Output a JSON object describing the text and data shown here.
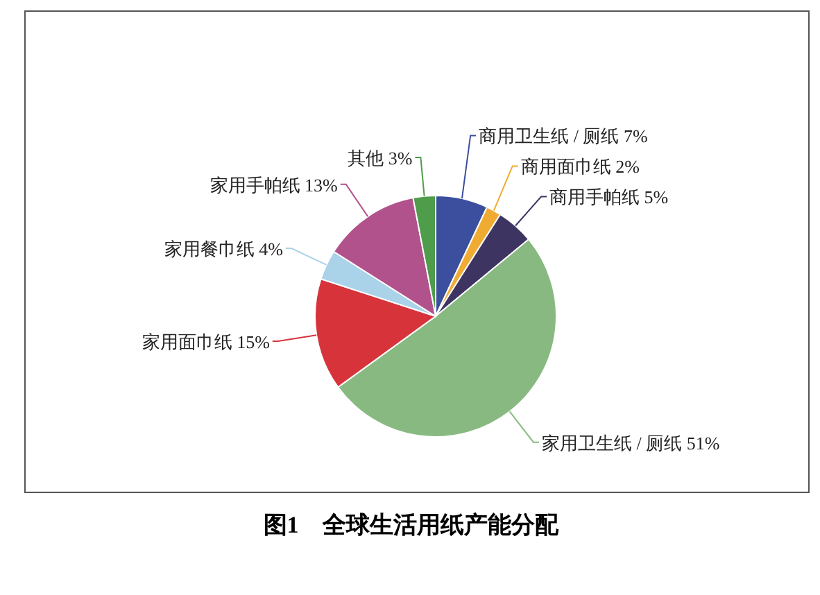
{
  "chart_data": {
    "type": "pie",
    "title": "图1　全球生活用纸产能分配",
    "categories": [
      "商用卫生纸 / 厕纸",
      "商用面巾纸",
      "商用手帕纸",
      "家用卫生纸 / 厕纸",
      "家用面巾纸",
      "家用餐巾纸",
      "家用手帕纸",
      "其他"
    ],
    "values": [
      7,
      2,
      5,
      51,
      15,
      4,
      13,
      3
    ],
    "value_labels": [
      "7%",
      "2%",
      "5%",
      "51%",
      "15%",
      "4%",
      "13%",
      "3%"
    ],
    "colors": [
      "#3b4f9e",
      "#f0ac32",
      "#3e3462",
      "#88b981",
      "#d7333b",
      "#aad2e8",
      "#b2528c",
      "#4f9c4a"
    ]
  }
}
